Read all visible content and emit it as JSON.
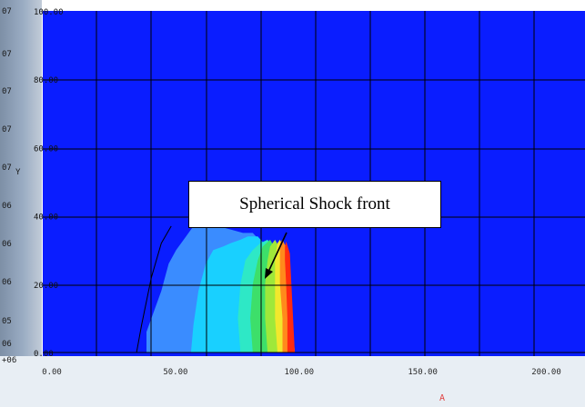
{
  "colors": {
    "background": "#0a1dff",
    "grid": "#000000",
    "left_strip": "#9aacc3",
    "bottom_strip": "#e8eef4",
    "arrow": "#000000",
    "marker": "#e04040"
  },
  "left_strip_labels": [
    "07",
    "07",
    "07",
    "07",
    "07",
    "06",
    "06",
    "06",
    "05",
    "06",
    "+06"
  ],
  "axis_letter": "Y",
  "annotation": "Spherical Shock front",
  "marker_glyph": "A",
  "chart_data": {
    "type": "heatmap",
    "title": "",
    "xlabel": "",
    "ylabel": "",
    "xlim": [
      0,
      216
    ],
    "ylim": [
      0,
      100
    ],
    "x_ticks": [
      "0.00",
      "50.00",
      "100.00",
      "150.00",
      "200.00"
    ],
    "y_ticks": [
      "0.00",
      "20.00",
      "40.00",
      "60.00",
      "80.00",
      "100.00"
    ],
    "grid": true,
    "colormap": [
      "#0a1dff",
      "#3a8cff",
      "#19d0ff",
      "#2ee8c6",
      "#3ddf6a",
      "#9fe83a",
      "#f2e82c",
      "#ff8a1c",
      "#ff2a10"
    ],
    "contours": [
      {
        "level": 1,
        "color": "#3a8cff",
        "points": [
          [
            39,
            0
          ],
          [
            39,
            6
          ],
          [
            45,
            18
          ],
          [
            48,
            26
          ],
          [
            51,
            30
          ],
          [
            55,
            34
          ],
          [
            59,
            38
          ],
          [
            63,
            38
          ],
          [
            68,
            37
          ],
          [
            73,
            36
          ],
          [
            78,
            35
          ],
          [
            82,
            35
          ],
          [
            95,
            25
          ],
          [
            99,
            0
          ]
        ]
      },
      {
        "level": 2,
        "color": "#19d0ff",
        "points": [
          [
            57,
            0
          ],
          [
            58,
            8
          ],
          [
            60,
            18
          ],
          [
            63,
            26
          ],
          [
            66,
            30
          ],
          [
            70,
            31
          ],
          [
            73,
            32
          ],
          [
            77,
            33
          ],
          [
            80,
            34
          ],
          [
            84,
            34
          ],
          [
            95,
            25
          ],
          [
            99,
            0
          ]
        ]
      },
      {
        "level": 3,
        "color": "#2ee8c6",
        "points": [
          [
            77,
            0
          ],
          [
            76,
            10
          ],
          [
            77,
            20
          ],
          [
            79,
            27
          ],
          [
            82,
            30
          ],
          [
            85,
            32
          ],
          [
            88,
            33
          ],
          [
            93,
            27
          ],
          [
            99,
            0
          ]
        ]
      },
      {
        "level": 4,
        "color": "#3ddf6a",
        "points": [
          [
            82,
            0
          ],
          [
            81,
            10
          ],
          [
            82,
            20
          ],
          [
            84,
            27
          ],
          [
            86,
            31
          ],
          [
            89,
            33
          ],
          [
            93,
            28
          ],
          [
            99,
            0
          ]
        ]
      },
      {
        "level": 5,
        "color": "#9fe83a",
        "points": [
          [
            88,
            0
          ],
          [
            87,
            10
          ],
          [
            87,
            20
          ],
          [
            88,
            27
          ],
          [
            89,
            31
          ],
          [
            91,
            33
          ],
          [
            94,
            29
          ],
          [
            99,
            0
          ]
        ]
      },
      {
        "level": 6,
        "color": "#f2e82c",
        "points": [
          [
            92,
            0
          ],
          [
            91,
            10
          ],
          [
            91,
            20
          ],
          [
            91,
            27
          ],
          [
            92,
            32
          ],
          [
            93,
            33
          ],
          [
            95,
            30
          ],
          [
            99,
            0
          ]
        ]
      },
      {
        "level": 7,
        "color": "#ff8a1c",
        "points": [
          [
            94,
            0
          ],
          [
            94,
            10
          ],
          [
            93,
            20
          ],
          [
            93,
            27
          ],
          [
            93,
            32
          ],
          [
            94,
            33
          ],
          [
            96,
            30
          ],
          [
            99,
            0
          ]
        ]
      },
      {
        "level": 8,
        "color": "#ff2a10",
        "points": [
          [
            96,
            0
          ],
          [
            96,
            10
          ],
          [
            95.5,
            20
          ],
          [
            95,
            27
          ],
          [
            95,
            31
          ],
          [
            95.5,
            32.5
          ],
          [
            97,
            29
          ],
          [
            99,
            0
          ]
        ]
      }
    ],
    "outline": {
      "color": "#000000",
      "points": [
        [
          35,
          0
        ],
        [
          37,
          8
        ],
        [
          41,
          22
        ],
        [
          45,
          32
        ],
        [
          49,
          37
        ]
      ]
    }
  }
}
